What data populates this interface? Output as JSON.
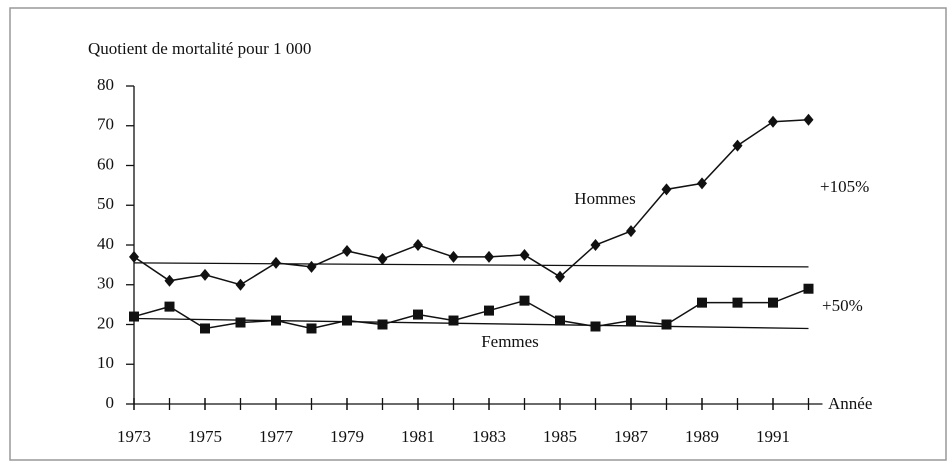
{
  "chart_data": {
    "type": "line",
    "y_axis_label": "Quotient de mortalité pour 1 000",
    "x_axis_label": "Année",
    "x": [
      1973,
      1974,
      1975,
      1976,
      1977,
      1978,
      1979,
      1980,
      1981,
      1982,
      1983,
      1984,
      1985,
      1986,
      1987,
      1988,
      1989,
      1990,
      1991,
      1992
    ],
    "series": [
      {
        "name": "Hommes",
        "color": "#111111",
        "marker": "diamond",
        "values": [
          37,
          31,
          32.5,
          30,
          35.5,
          34.5,
          38.5,
          36.5,
          40,
          37,
          37,
          37.5,
          32,
          40,
          43.5,
          54,
          55.5,
          65,
          71,
          71.5
        ]
      },
      {
        "name": "Femmes",
        "color": "#111111",
        "marker": "square",
        "values": [
          22,
          24.5,
          19,
          20.5,
          21,
          19,
          21,
          20,
          22.5,
          21,
          23.5,
          26,
          21,
          19.5,
          21,
          20,
          25.5,
          25.5,
          25.5,
          29
        ]
      }
    ],
    "reference_lines": [
      {
        "x": [
          1973,
          1992
        ],
        "values": [
          35.5,
          34.5
        ]
      },
      {
        "x": [
          1973,
          1992
        ],
        "values": [
          21.5,
          19
        ]
      }
    ],
    "annotations": [
      "+105%",
      "+50%"
    ],
    "xlim": [
      1973,
      1992
    ],
    "xticks": [
      1973,
      1975,
      1977,
      1979,
      1981,
      1983,
      1985,
      1987,
      1989,
      1991
    ],
    "ylim": [
      0,
      80
    ],
    "yticks": [
      0,
      10,
      20,
      30,
      40,
      50,
      60,
      70,
      80
    ]
  }
}
